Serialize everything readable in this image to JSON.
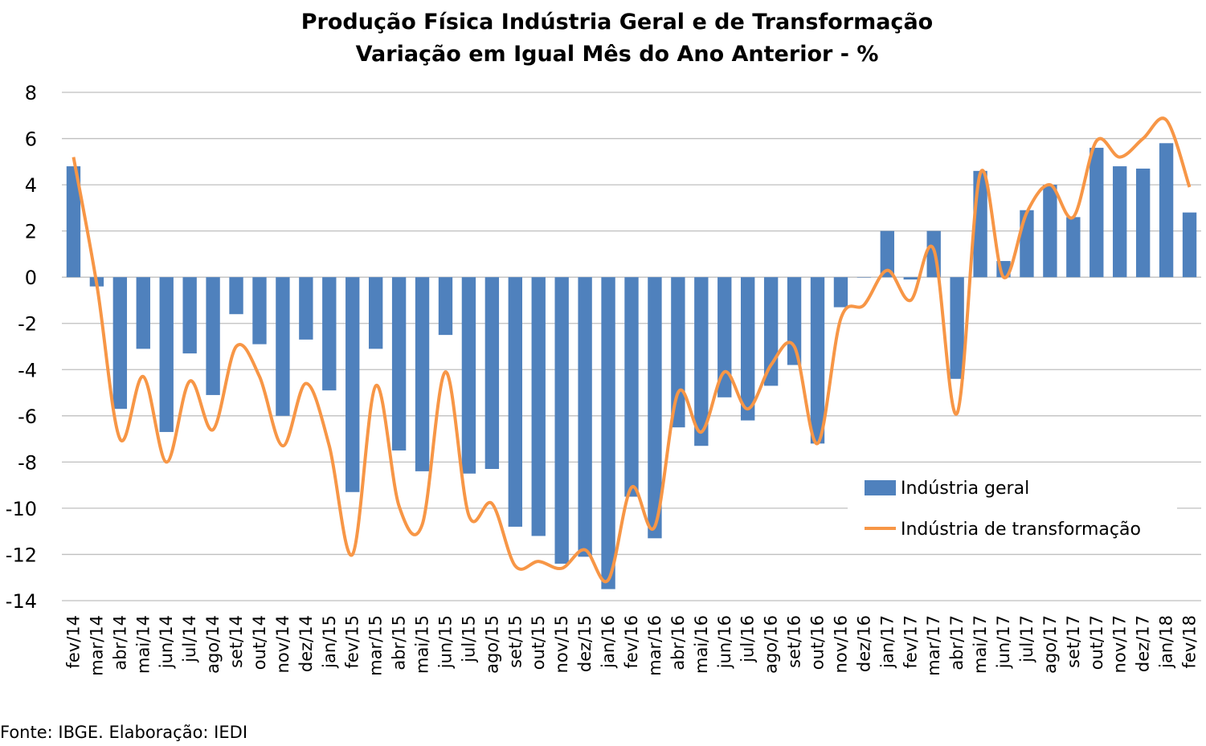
{
  "chart_data": {
    "type": "bar",
    "title": "Produção Física Indústria Geral e de Transformação",
    "subtitle": "Variação em Igual Mês do Ano Anterior - %",
    "xlabel": "",
    "ylabel": "",
    "ylim": [
      -14,
      8
    ],
    "yticks": [
      8,
      6,
      4,
      2,
      0,
      -2,
      -4,
      -6,
      -8,
      -10,
      -12,
      -14
    ],
    "grid": true,
    "legend_position": "right",
    "categories": [
      "fev/14",
      "mar/14",
      "abr/14",
      "mai/14",
      "jun/14",
      "jul/14",
      "ago/14",
      "set/14",
      "out/14",
      "nov/14",
      "dez/14",
      "jan/15",
      "fev/15",
      "mar/15",
      "abr/15",
      "mai/15",
      "jun/15",
      "jul/15",
      "ago/15",
      "set/15",
      "out/15",
      "nov/15",
      "dez/15",
      "jan/16",
      "fev/16",
      "mar/16",
      "abr/16",
      "mai/16",
      "jun/16",
      "jul/16",
      "ago/16",
      "set/16",
      "out/16",
      "nov/16",
      "dez/16",
      "jan/17",
      "fev/17",
      "mar/17",
      "abr/17",
      "mai/17",
      "jun/17",
      "jul/17",
      "ago/17",
      "set/17",
      "out/17",
      "nov/17",
      "dez/17",
      "jan/18",
      "fev/18"
    ],
    "series": [
      {
        "name": "Indústria geral",
        "type": "bar",
        "color": "#4F81BD",
        "values": [
          4.8,
          -0.4,
          -5.7,
          -3.1,
          -6.7,
          -3.3,
          -5.1,
          -1.6,
          -2.9,
          -6.0,
          -2.7,
          -4.9,
          -9.3,
          -3.1,
          -7.5,
          -8.4,
          -2.5,
          -8.5,
          -8.3,
          -10.8,
          -11.2,
          -12.4,
          -12.1,
          -13.5,
          -9.5,
          -11.3,
          -6.5,
          -7.3,
          -5.2,
          -6.2,
          -4.7,
          -3.8,
          -7.2,
          -1.3,
          0.0,
          2.0,
          -0.1,
          2.0,
          -4.4,
          4.6,
          0.7,
          2.9,
          4.0,
          2.6,
          5.6,
          4.8,
          4.7,
          5.8,
          2.8
        ]
      },
      {
        "name": "Indústria de transformação",
        "type": "line",
        "color": "#F79646",
        "values": [
          5.2,
          -0.3,
          -7.0,
          -4.3,
          -8.0,
          -4.5,
          -6.6,
          -3.0,
          -4.3,
          -7.3,
          -4.6,
          -7.3,
          -12.0,
          -4.7,
          -9.9,
          -10.7,
          -4.1,
          -10.3,
          -9.8,
          -12.5,
          -12.3,
          -12.6,
          -11.8,
          -13.1,
          -9.1,
          -10.8,
          -5.0,
          -6.7,
          -4.1,
          -5.7,
          -3.8,
          -3.0,
          -7.2,
          -1.8,
          -1.2,
          0.3,
          -1.0,
          1.2,
          -5.9,
          4.5,
          0.0,
          2.8,
          4.0,
          2.6,
          5.9,
          5.2,
          6.0,
          6.8,
          3.9
        ]
      }
    ],
    "source": "Fonte: IBGE. Elaboração: IEDI"
  }
}
